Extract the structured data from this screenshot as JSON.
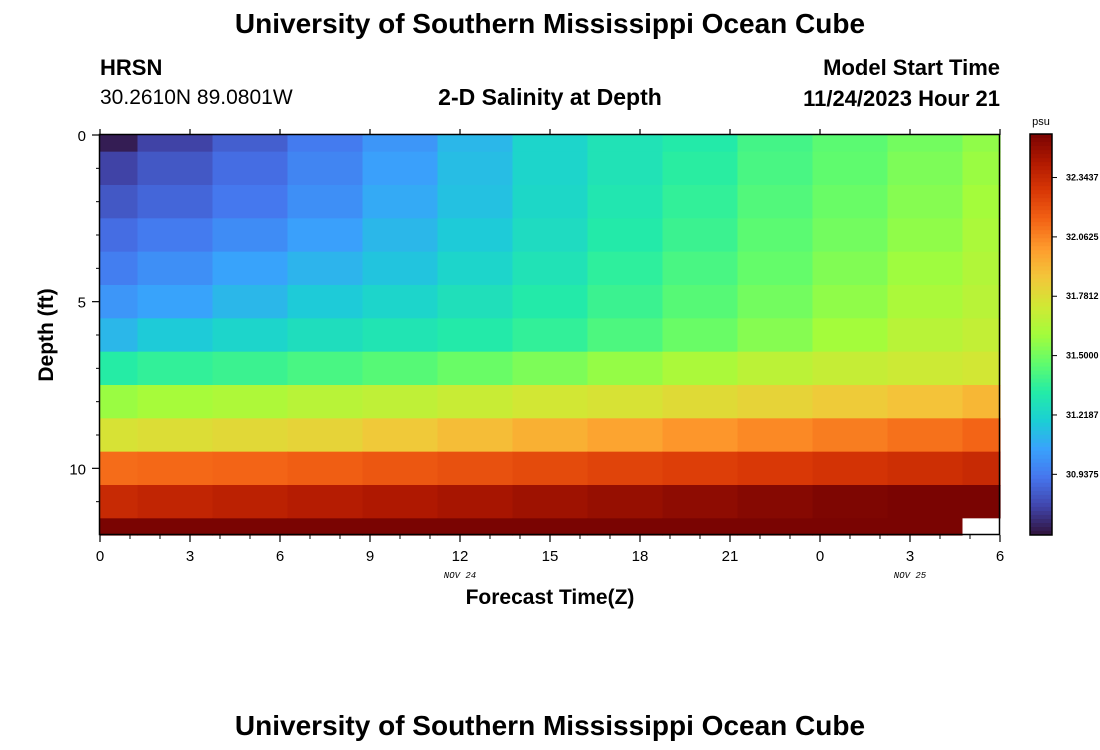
{
  "header": {
    "title": "University of Southern Mississippi Ocean Cube",
    "station": "HRSN",
    "coords": "30.2610N  89.0801W",
    "plot_title": "2-D Salinity at Depth",
    "model_start_label": "Model Start Time",
    "model_start_value": "11/24/2023 Hour 21"
  },
  "footer": {
    "title": "University of Southern Mississippi Ocean Cube"
  },
  "chart_data": {
    "type": "heatmap",
    "title": "2-D Salinity at Depth",
    "xlabel": "Forecast Time(Z)",
    "ylabel": "Depth (ft)",
    "x_tick_labels": [
      "0",
      "3",
      "6",
      "9",
      "12",
      "15",
      "18",
      "21",
      "0",
      "3",
      "6"
    ],
    "x_range_hours": [
      0,
      30
    ],
    "date_labels": [
      {
        "text": "NOV 24",
        "hour": 12
      },
      {
        "text": "NOV 25",
        "hour": 27
      }
    ],
    "y_tick_labels": [
      "0",
      "5",
      "10"
    ],
    "y_range_ft": [
      0,
      12
    ],
    "time_bins_hours": [
      0,
      1.25,
      3.75,
      6.25,
      8.75,
      11.25,
      13.75,
      16.25,
      18.75,
      21.25,
      23.75,
      26.25,
      28.75,
      30
    ],
    "depth_bins_ft": [
      0,
      0.5,
      1.5,
      2.5,
      3.5,
      4.5,
      5.5,
      6.5,
      7.5,
      8.5,
      9.5,
      10.5,
      11.5,
      12
    ],
    "salinity_psu": [
      [
        30.68,
        30.78,
        30.86,
        30.94,
        31.02,
        31.12,
        31.22,
        31.28,
        31.32,
        31.4,
        31.45,
        31.5,
        31.56
      ],
      [
        30.78,
        30.84,
        30.9,
        30.97,
        31.05,
        31.14,
        31.22,
        31.28,
        31.34,
        31.41,
        31.46,
        31.52,
        31.58
      ],
      [
        30.84,
        30.88,
        30.93,
        31.0,
        31.08,
        31.15,
        31.23,
        31.3,
        31.36,
        31.43,
        31.48,
        31.54,
        31.6
      ],
      [
        30.9,
        30.94,
        30.99,
        31.05,
        31.12,
        31.18,
        31.25,
        31.32,
        31.38,
        31.45,
        31.5,
        31.56,
        31.62
      ],
      [
        30.95,
        31.0,
        31.06,
        31.11,
        31.16,
        31.22,
        31.28,
        31.35,
        31.41,
        31.47,
        31.53,
        31.59,
        31.64
      ],
      [
        31.02,
        31.06,
        31.12,
        31.18,
        31.22,
        31.27,
        31.32,
        31.38,
        31.44,
        31.5,
        31.56,
        31.62,
        31.66
      ],
      [
        31.12,
        31.18,
        31.22,
        31.26,
        31.29,
        31.32,
        31.36,
        31.42,
        31.48,
        31.54,
        31.6,
        31.66,
        31.69
      ],
      [
        31.33,
        31.36,
        31.38,
        31.41,
        31.44,
        31.48,
        31.52,
        31.57,
        31.62,
        31.67,
        31.7,
        31.72,
        31.74
      ],
      [
        31.58,
        31.61,
        31.63,
        31.66,
        31.68,
        31.71,
        31.74,
        31.76,
        31.79,
        31.82,
        31.85,
        31.88,
        31.92
      ],
      [
        31.76,
        31.78,
        31.8,
        31.82,
        31.86,
        31.9,
        31.94,
        31.98,
        32.02,
        32.05,
        32.08,
        32.11,
        32.14
      ],
      [
        32.12,
        32.13,
        32.14,
        32.16,
        32.18,
        32.2,
        32.22,
        32.24,
        32.26,
        32.28,
        32.3,
        32.32,
        32.34
      ],
      [
        32.34,
        32.36,
        32.38,
        32.4,
        32.42,
        32.44,
        32.46,
        32.48,
        32.5,
        32.52,
        32.54,
        32.56,
        32.58
      ],
      [
        32.62,
        32.63,
        32.64,
        32.65,
        32.66,
        32.67,
        32.68,
        32.69,
        32.7,
        32.71,
        32.72,
        32.72,
        null
      ]
    ],
    "colorbar": {
      "unit": "psu",
      "range": [
        30.65,
        32.55
      ],
      "tick_values": [
        32.34375,
        32.0625,
        31.78125,
        31.5,
        31.21875,
        30.9375
      ],
      "tick_labels": [
        "32.3437",
        "32.0625",
        "31.7812",
        "31.5000",
        "31.2187",
        "30.9375"
      ]
    }
  },
  "colors": {
    "colormap": [
      "#30123b",
      "#4145ab",
      "#4675ed",
      "#39a2fc",
      "#1bcfd4",
      "#24eca6",
      "#61fc6c",
      "#a4fc3b",
      "#d1e834",
      "#f3c63a",
      "#fe9b2d",
      "#f36315",
      "#d93806",
      "#b11901",
      "#7a0402"
    ],
    "missing": "#ffffff",
    "axis": "#000000"
  }
}
